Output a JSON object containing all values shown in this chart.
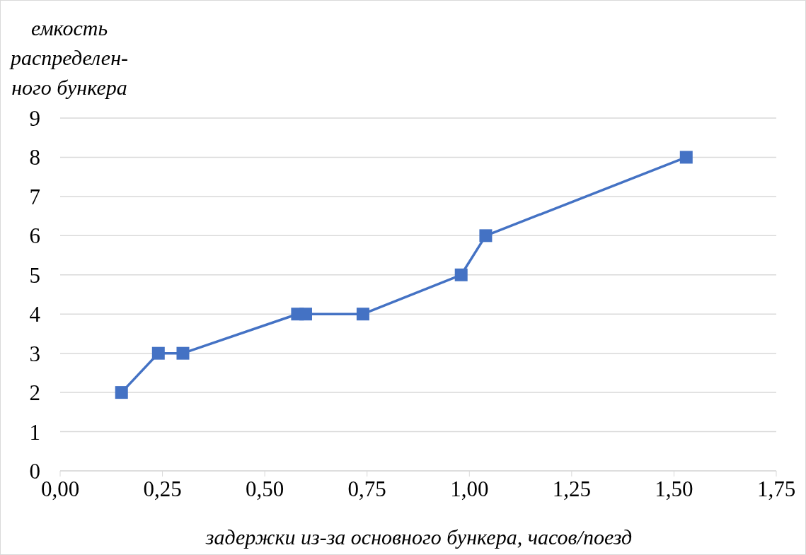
{
  "chart_data": {
    "type": "line",
    "xlabel": "задержки из-за основного бункера, часов/поезд",
    "ylabel": "емкость\nраспределен-\nного бункера",
    "x": [
      0.15,
      0.24,
      0.3,
      0.58,
      0.6,
      0.74,
      0.98,
      1.04,
      1.53
    ],
    "series": [
      {
        "color": "#4472c4",
        "values": [
          2,
          3,
          3,
          4,
          4,
          4,
          5,
          6,
          8
        ]
      }
    ],
    "xlim": [
      0,
      1.75
    ],
    "xticks": [
      {
        "value": 0,
        "label": "0,00"
      },
      {
        "value": 0.25,
        "label": "0,25"
      },
      {
        "value": 0.5,
        "label": "0,50"
      },
      {
        "value": 0.75,
        "label": "0,75"
      },
      {
        "value": 1,
        "label": "1,00"
      },
      {
        "value": 1.25,
        "label": "1,25"
      },
      {
        "value": 1.5,
        "label": "1,50"
      },
      {
        "value": 1.75,
        "label": "1,75"
      }
    ],
    "ylim": [
      0,
      9
    ],
    "yticks": [
      0,
      1,
      2,
      3,
      4,
      5,
      6,
      7,
      8,
      9
    ],
    "grid": "y",
    "marker": "square",
    "line_style": "solid"
  }
}
